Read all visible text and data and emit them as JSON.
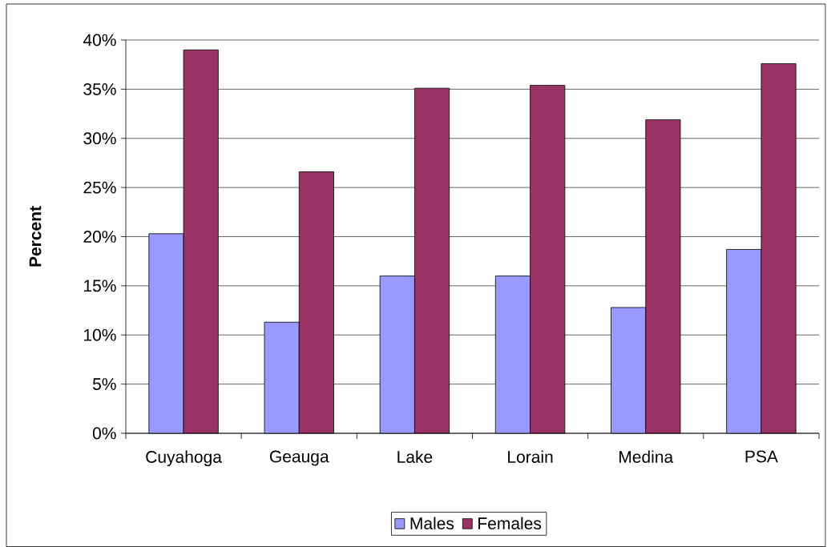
{
  "chart_data": {
    "type": "bar",
    "ylabel": "Percent",
    "categories": [
      "Cuyahoga",
      "Geauga",
      "Lake",
      "Lorain",
      "Medina",
      "PSA"
    ],
    "series": [
      {
        "name": "Males",
        "color": "#9999ff",
        "values": [
          20.3,
          11.3,
          16.0,
          16.0,
          12.8,
          18.7
        ]
      },
      {
        "name": "Females",
        "color": "#993366",
        "values": [
          39.0,
          26.6,
          35.1,
          35.4,
          31.9,
          37.6
        ]
      }
    ],
    "ylim": [
      0,
      40
    ],
    "yticks": [
      {
        "value": 0,
        "label": "0%"
      },
      {
        "value": 5,
        "label": "5%"
      },
      {
        "value": 10,
        "label": "10%"
      },
      {
        "value": 15,
        "label": "15%"
      },
      {
        "value": 20,
        "label": "20%"
      },
      {
        "value": 25,
        "label": "25%"
      },
      {
        "value": 30,
        "label": "30%"
      },
      {
        "value": 35,
        "label": "35%"
      },
      {
        "value": 40,
        "label": "40%"
      }
    ],
    "grid": "y",
    "legend": "bottom"
  }
}
